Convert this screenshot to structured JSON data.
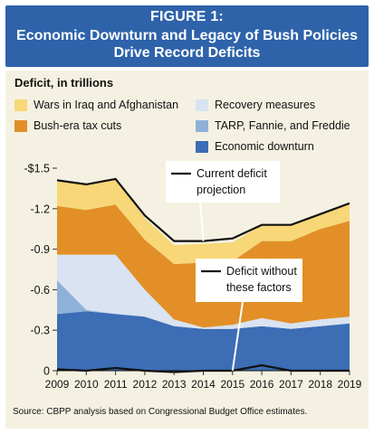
{
  "header": {
    "figure_label": "FIGURE 1:",
    "title_line_1": "Economic Downturn and Legacy of Bush Policies",
    "title_line_2": "Drive Record Deficits"
  },
  "colors": {
    "header_bg": "#2e63aa",
    "panel_bg": "#f5f1e2",
    "wars": "#f7d777",
    "tax_cuts": "#e28f27",
    "recovery": "#d9e3f1",
    "tarp": "#8fb1d9",
    "economic_downturn": "#3c6db5",
    "total_line": "#111111"
  },
  "chart_data": {
    "type": "area",
    "title": "",
    "ylabel": "Deficit, in trillions",
    "xlabel": "",
    "x": [
      "2009",
      "2010",
      "2011",
      "2012",
      "2013",
      "2014",
      "2015",
      "2016",
      "2017",
      "2018",
      "2019"
    ],
    "ylim": [
      0,
      1.5
    ],
    "yticks": [
      {
        "value": 0,
        "label": "0"
      },
      {
        "value": 0.3,
        "label": "-0.3"
      },
      {
        "value": 0.6,
        "label": "-0.6"
      },
      {
        "value": 0.9,
        "label": "-0.9"
      },
      {
        "value": 1.2,
        "label": "-1.2"
      },
      {
        "value": 1.5,
        "label": "-$1.5"
      }
    ],
    "stack_order": [
      "Economic downturn",
      "TARP, Fannie, and Freddie",
      "Recovery measures",
      "Bush-era tax cuts",
      "Wars in Iraq and Afghanistan"
    ],
    "series": [
      {
        "name": "Economic downturn",
        "values": [
          0.42,
          0.44,
          0.42,
          0.4,
          0.33,
          0.31,
          0.31,
          0.33,
          0.31,
          0.33,
          0.35
        ]
      },
      {
        "name": "TARP, Fannie, and Freddie",
        "values": [
          0.25,
          0.01,
          0.0,
          0.0,
          0.0,
          0.0,
          0.0,
          0.0,
          0.0,
          0.0,
          0.0
        ]
      },
      {
        "name": "Recovery measures",
        "values": [
          0.19,
          0.41,
          0.44,
          0.2,
          0.05,
          0.01,
          0.03,
          0.06,
          0.04,
          0.05,
          0.05
        ]
      },
      {
        "name": "Bush-era tax cuts",
        "values": [
          0.36,
          0.33,
          0.37,
          0.37,
          0.41,
          0.48,
          0.47,
          0.57,
          0.61,
          0.67,
          0.71
        ]
      },
      {
        "name": "Wars in Iraq and Afghanistan",
        "values": [
          0.18,
          0.19,
          0.19,
          0.16,
          0.14,
          0.14,
          0.14,
          0.12,
          0.12,
          0.12,
          0.12
        ]
      }
    ],
    "lines": [
      {
        "name": "Current deficit projection",
        "values": [
          1.41,
          1.38,
          1.42,
          1.15,
          0.96,
          0.96,
          0.98,
          1.08,
          1.08,
          1.16,
          1.24
        ]
      },
      {
        "name": "Deficit without these factors",
        "values": [
          0.01,
          0.0,
          0.02,
          0.0,
          -0.01,
          0.0,
          0.0,
          0.04,
          0.0,
          0.0,
          0.0
        ]
      }
    ],
    "legend": [
      "Wars in Iraq and Afghanistan",
      "Recovery measures",
      "Bush-era tax cuts",
      "TARP, Fannie, and Freddie",
      "Economic downturn"
    ],
    "annotations": [
      {
        "line1": "Current deficit",
        "line2": "projection",
        "target_year": "2014"
      },
      {
        "line1": "Deficit without",
        "line2": "these factors",
        "target_year": "2015"
      }
    ],
    "source": "Source: CBPP analysis based on Congressional Budget Office estimates."
  }
}
